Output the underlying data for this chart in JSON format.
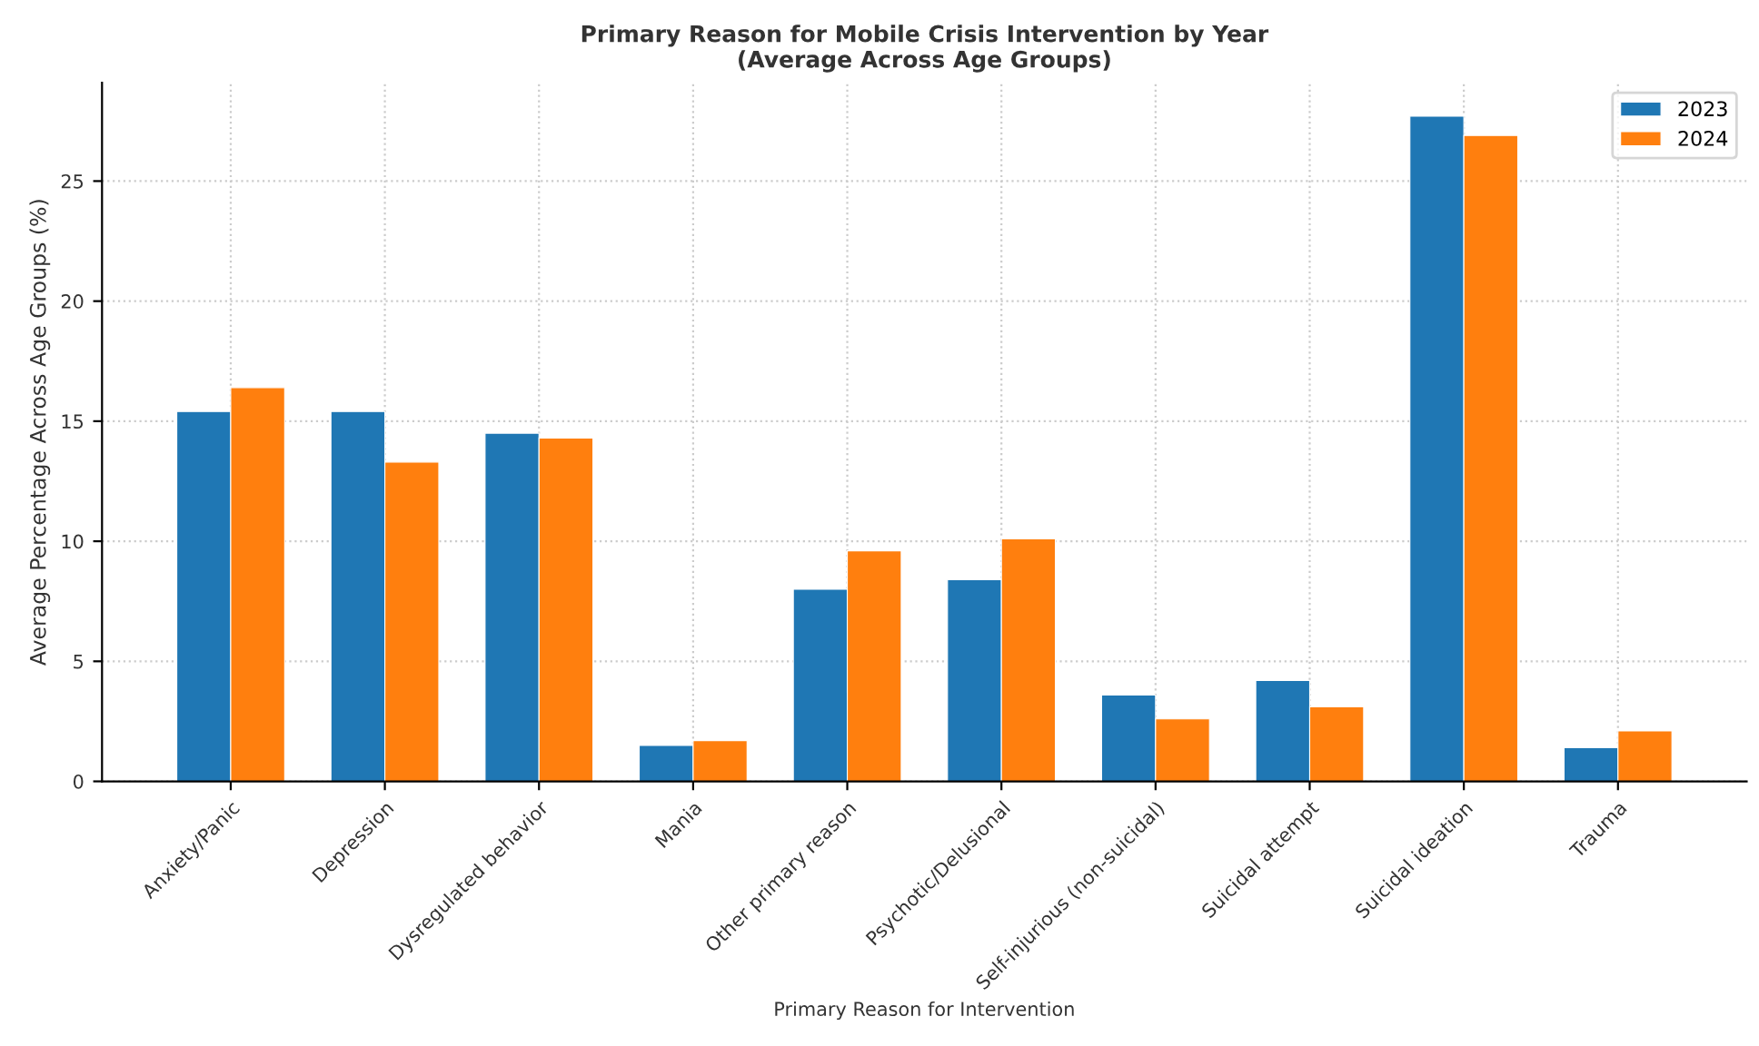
{
  "chart_data": {
    "type": "bar",
    "title": "Primary Reason for Mobile Crisis Intervention by Year\n(Average Across Age Groups)",
    "xlabel": "Primary Reason for Intervention",
    "ylabel": "Average Percentage Across Age Groups (%)",
    "categories": [
      "Anxiety/Panic",
      "Depression",
      "Dysregulated behavior",
      "Mania",
      "Other primary reason",
      "Psychotic/Delusional",
      "Self-injurious (non-suicidal)",
      "Suicidal attempt",
      "Suicidal ideation",
      "Trauma"
    ],
    "series": [
      {
        "name": "2023",
        "color": "#1f77b4",
        "values": [
          15.4,
          15.4,
          14.5,
          1.5,
          8.0,
          8.4,
          3.6,
          4.2,
          27.7,
          1.4
        ]
      },
      {
        "name": "2024",
        "color": "#ff7f0e",
        "values": [
          16.4,
          13.3,
          14.3,
          1.7,
          9.6,
          10.1,
          2.6,
          3.1,
          26.9,
          2.1
        ]
      }
    ],
    "ylim": [
      0,
      29.1
    ],
    "yticks": [
      0,
      5,
      10,
      15,
      20,
      25
    ],
    "grid": true,
    "legend": "top right"
  }
}
